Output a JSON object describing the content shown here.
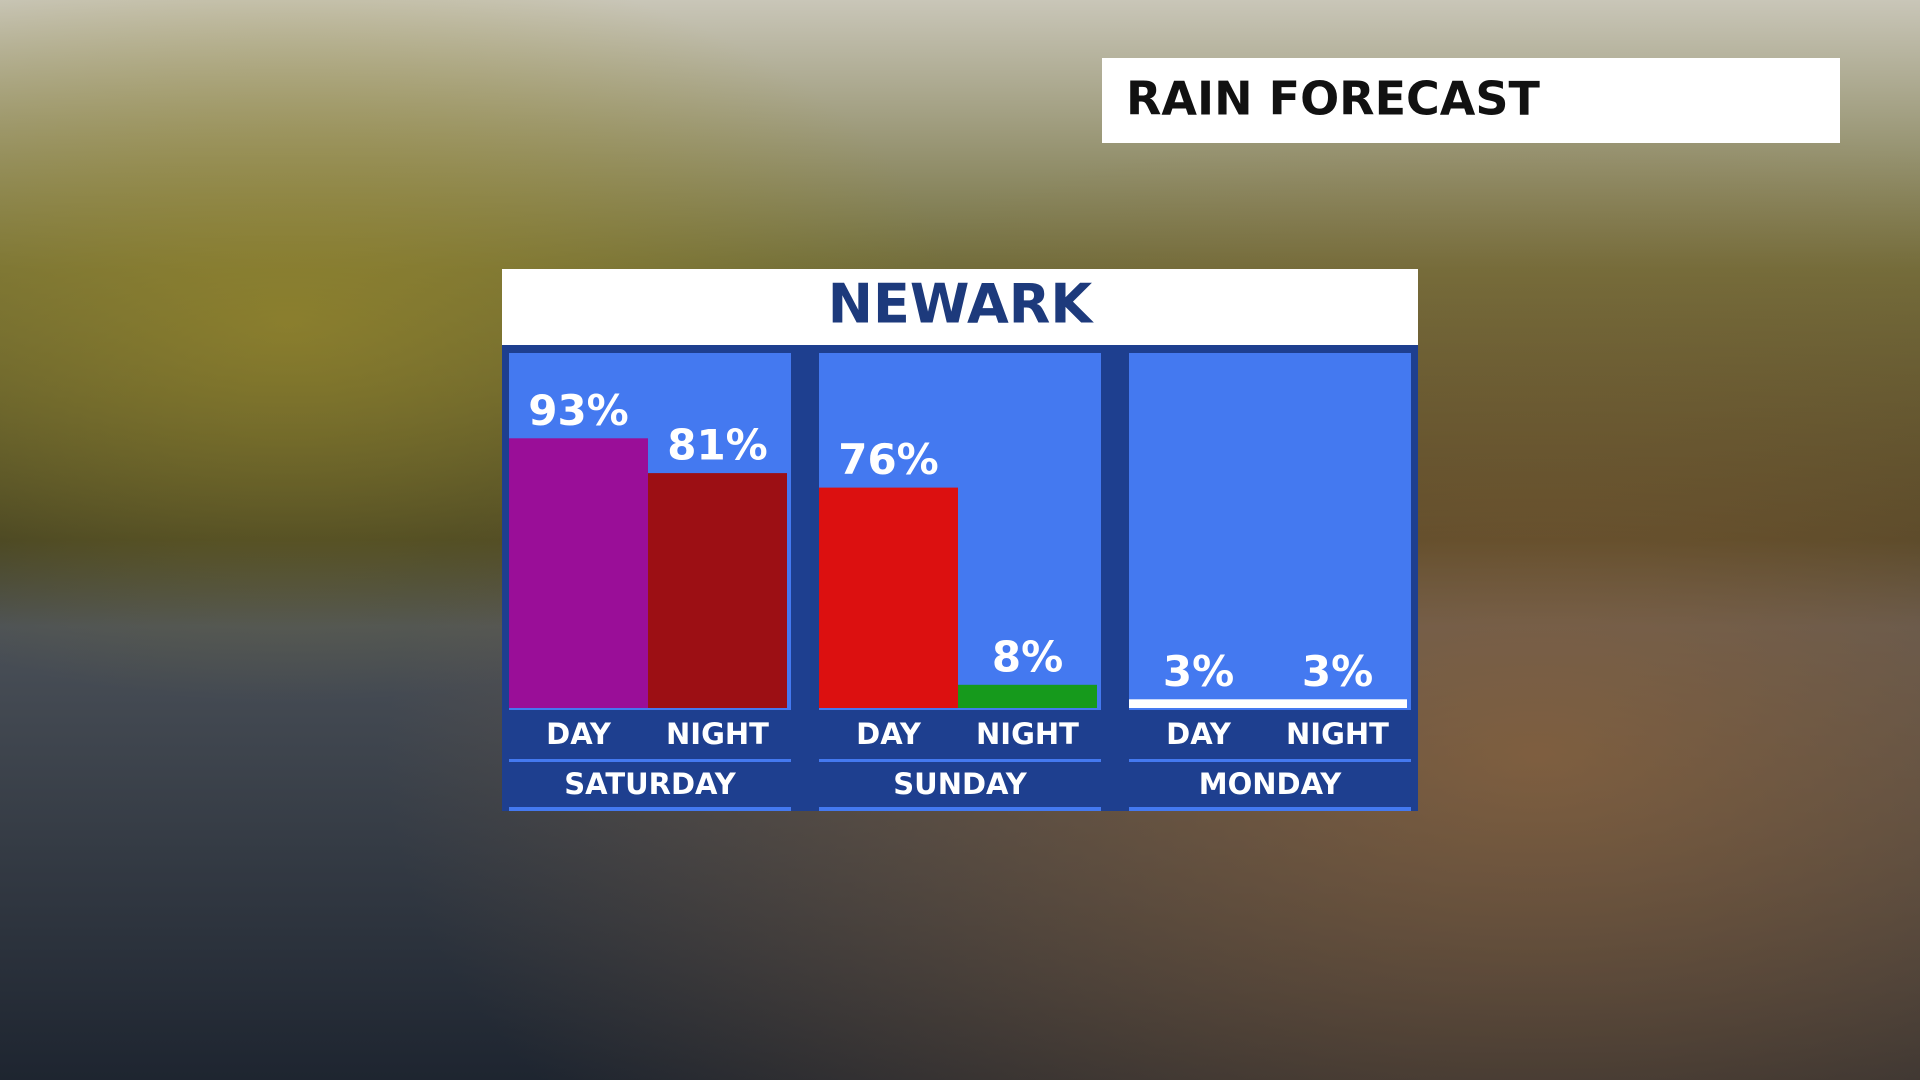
{
  "header": "RAIN FORECAST",
  "chart_data": {
    "type": "bar",
    "title": "NEWARK",
    "ylim": [
      0,
      100
    ],
    "groups": [
      {
        "label": "SATURDAY",
        "categories": [
          "DAY",
          "NIGHT"
        ],
        "values": [
          93,
          81
        ],
        "value_labels": [
          "93%",
          "81%"
        ],
        "colors": [
          "#9a0e98",
          "#9c0f14"
        ]
      },
      {
        "label": "SUNDAY",
        "categories": [
          "DAY",
          "NIGHT"
        ],
        "values": [
          76,
          8
        ],
        "value_labels": [
          "76%",
          "8%"
        ],
        "colors": [
          "#dc1010",
          "#169a1c"
        ]
      },
      {
        "label": "MONDAY",
        "categories": [
          "DAY",
          "NIGHT"
        ],
        "values": [
          3,
          3
        ],
        "value_labels": [
          "3%",
          "3%"
        ],
        "colors": [
          "#ffffff",
          "#ffffff"
        ]
      }
    ]
  }
}
